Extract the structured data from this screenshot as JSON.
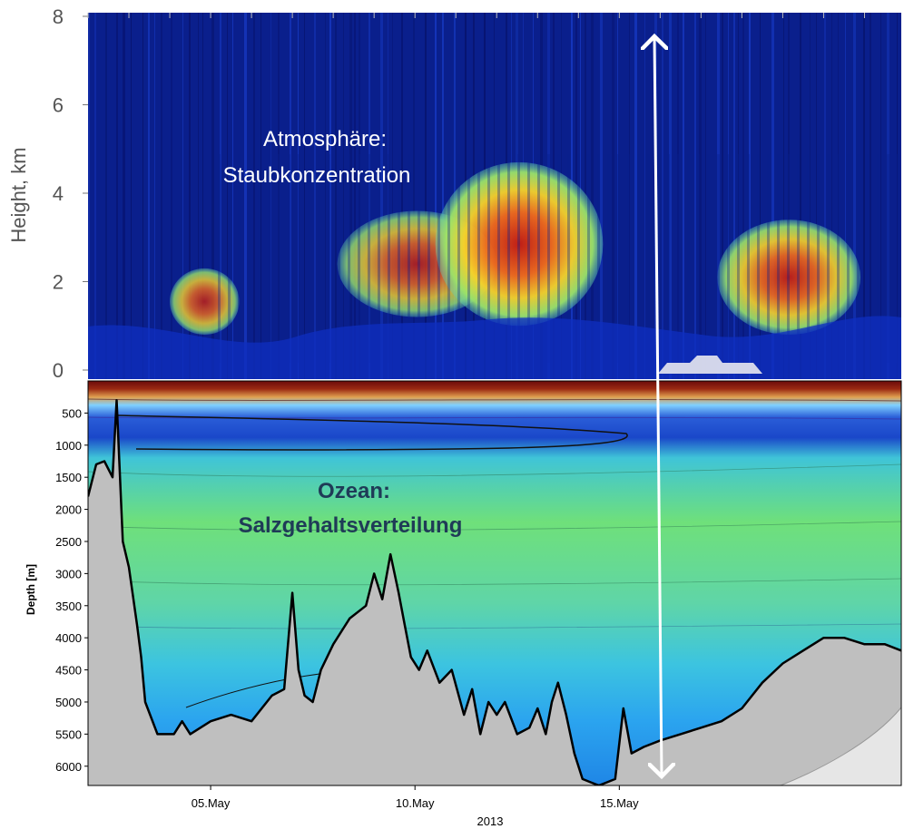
{
  "chart_data": [
    {
      "type": "heatmap",
      "panel": "atmosphere",
      "ylabel": "Height,  km",
      "ylim": [
        0,
        8
      ],
      "yticks": [
        0,
        2,
        4,
        6,
        8
      ],
      "annotation": [
        "Atmosphäre:",
        "Staubkonzentration"
      ],
      "dust_layers": [
        {
          "start_day": 4.0,
          "end_day": 5.7,
          "base_km": 0.8,
          "top_km": 2.3,
          "level": 0.8
        },
        {
          "start_day": 8.1,
          "end_day": 12.0,
          "base_km": 1.2,
          "top_km": 3.6,
          "level": 0.8
        },
        {
          "start_day": 10.5,
          "end_day": 14.6,
          "base_km": 1.0,
          "top_km": 4.7,
          "level": 0.95
        },
        {
          "start_day": 17.4,
          "end_day": 20.9,
          "base_km": 0.8,
          "top_km": 3.4,
          "level": 0.9
        }
      ]
    },
    {
      "type": "heatmap",
      "panel": "ocean",
      "ylabel": "Depth [m]",
      "ylim": [
        6300,
        0
      ],
      "yticks": [
        500,
        1000,
        1500,
        2000,
        2500,
        3000,
        3500,
        4000,
        4500,
        5000,
        5500,
        6000
      ],
      "xlabel": "2013",
      "xtick_labels": [
        "05.May",
        "10.May",
        "15.May"
      ],
      "xtick_days": [
        5,
        10,
        15
      ],
      "xlim_days": [
        2.0,
        21.9
      ],
      "annotation": [
        "Ozean:",
        "Salzgehaltsverteilung"
      ],
      "bathymetry": {
        "day": [
          2.0,
          2.2,
          2.4,
          2.6,
          2.7,
          2.85,
          3.0,
          3.2,
          3.3,
          3.4,
          3.7,
          3.9,
          4.1,
          4.3,
          4.5,
          5.0,
          5.5,
          6.0,
          6.5,
          6.8,
          7.0,
          7.15,
          7.3,
          7.5,
          7.7,
          8.0,
          8.4,
          8.8,
          9.0,
          9.2,
          9.4,
          9.6,
          9.75,
          9.9,
          10.1,
          10.3,
          10.6,
          10.9,
          11.2,
          11.4,
          11.6,
          11.8,
          12.0,
          12.2,
          12.5,
          12.8,
          13.0,
          13.2,
          13.35,
          13.5,
          13.7,
          13.9,
          14.1,
          14.3,
          14.5,
          14.7,
          14.9,
          15.1,
          15.3,
          15.6,
          16.0,
          16.5,
          17.0,
          17.5,
          18.0,
          18.5,
          19.0,
          19.5,
          20.0,
          20.5,
          21.0,
          21.5,
          21.9
        ],
        "depth_m": [
          1800,
          1300,
          1250,
          1500,
          300,
          2500,
          2900,
          3800,
          4300,
          5000,
          5500,
          5500,
          5500,
          5300,
          5500,
          5300,
          5200,
          5300,
          4900,
          4800,
          3300,
          4500,
          4900,
          5000,
          4500,
          4100,
          3700,
          3500,
          3000,
          3400,
          2700,
          3300,
          3800,
          4300,
          4500,
          4200,
          4700,
          4500,
          5200,
          4800,
          5500,
          5000,
          5200,
          5000,
          5500,
          5400,
          5100,
          5500,
          5000,
          4700,
          5200,
          5800,
          6200,
          6250,
          6300,
          6250,
          6200,
          5100,
          5800,
          5700,
          5600,
          5500,
          5400,
          5300,
          5100,
          4700,
          4400,
          4200,
          4000,
          4000,
          4100,
          4100,
          4200
        ]
      },
      "salinity_layers": [
        "surface maximum 0–300 m",
        "intermediate minimum 700–1000 m",
        "deep 1000–6300 m"
      ]
    }
  ]
}
